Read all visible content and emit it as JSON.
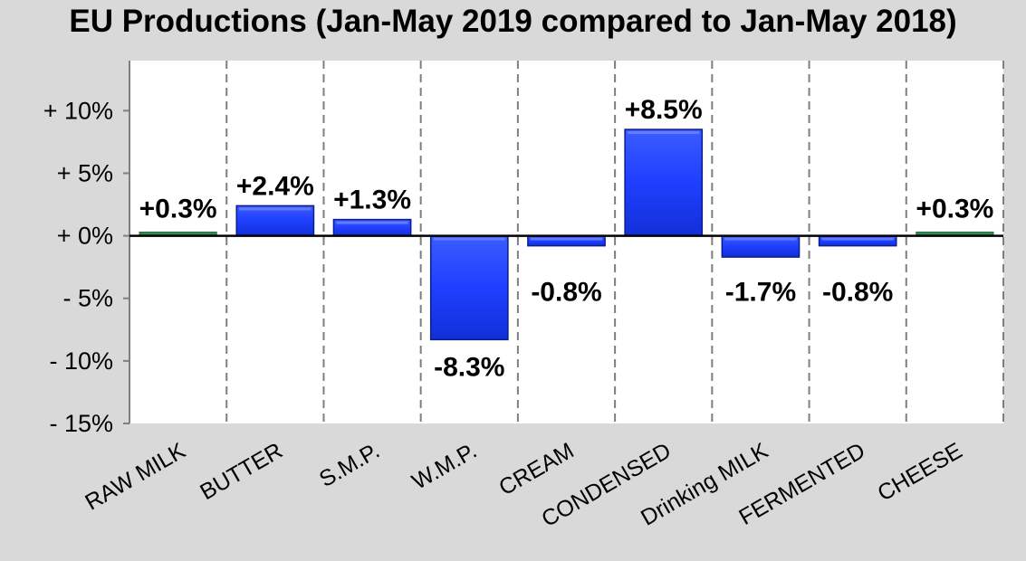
{
  "chart_data": {
    "type": "bar",
    "title": "EU Productions (Jan-May 2019 compared to Jan-May 2018)",
    "categories": [
      "RAW MILK",
      "BUTTER",
      "S.M.P.",
      "W.M.P.",
      "CREAM",
      "CONDENSED",
      "Drinking MILK",
      "FERMENTED",
      "CHEESE"
    ],
    "values": [
      0.3,
      2.4,
      1.3,
      -8.3,
      -0.8,
      8.5,
      -1.7,
      -0.8,
      0.3
    ],
    "data_labels": [
      "+0.3%",
      "+2.4%",
      "+1.3%",
      "-8.3%",
      "-0.8%",
      "+8.5%",
      "-1.7%",
      "-0.8%",
      "+0.3%"
    ],
    "yticks": [
      10,
      5,
      0,
      -5,
      -10,
      -15
    ],
    "ytick_labels": [
      "+ 10%",
      "+ 5%",
      "+ 0%",
      "- 5%",
      "- 10%",
      "- 15%"
    ],
    "ylim": [
      -15,
      14
    ],
    "xlabel": "",
    "ylabel": "",
    "grid": "vertical dashed",
    "colors": {
      "bar": "#1f3fff",
      "bar_dark": "#0a1d8c",
      "bar_light": "#6f86ff",
      "background": "#d9d9d9",
      "plot_bg": "#ffffff",
      "grid": "#7f7f7f"
    }
  }
}
